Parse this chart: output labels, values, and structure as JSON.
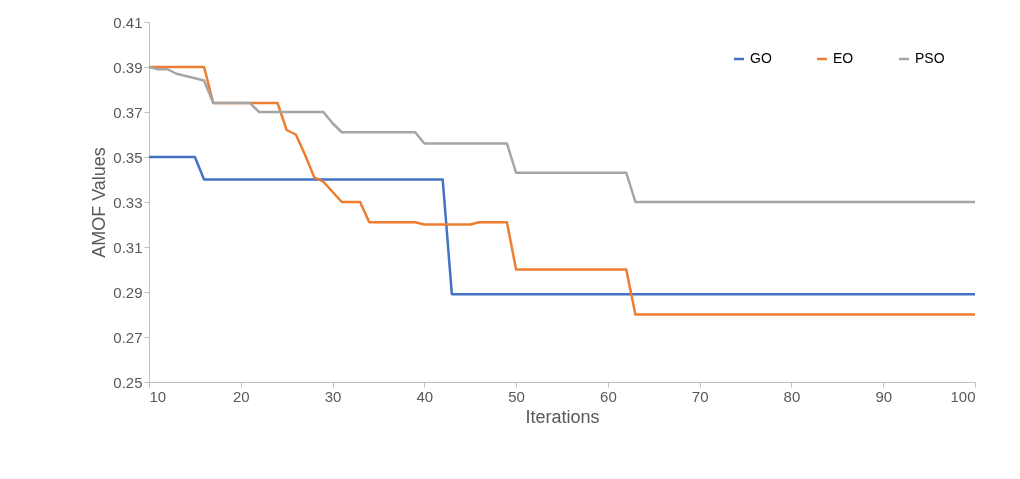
{
  "chart_data": {
    "type": "line",
    "xlabel": "Iterations",
    "ylabel": "AMOF Values",
    "xlim": [
      10,
      100
    ],
    "xticks": [
      10,
      20,
      30,
      40,
      50,
      60,
      70,
      80,
      90,
      100
    ],
    "ylim": [
      0.25,
      0.41
    ],
    "yticks": [
      0.25,
      0.27,
      0.29,
      0.31,
      0.33,
      0.35,
      0.37,
      0.39,
      0.41
    ],
    "grid": false,
    "legend": "top right",
    "marker": "none",
    "line_style": "solid",
    "series": [
      {
        "name": "GO",
        "color": "#4472c4",
        "x": [
          10,
          15,
          16,
          42,
          43,
          100
        ],
        "values": [
          0.35,
          0.35,
          0.34,
          0.34,
          0.289,
          0.289
        ]
      },
      {
        "name": "EO",
        "color": "#ed7d31",
        "x": [
          10,
          16,
          17,
          24,
          25,
          26,
          27,
          28,
          29,
          31,
          33,
          34,
          39,
          40,
          45,
          46,
          49,
          50,
          62,
          63,
          100
        ],
        "values": [
          0.39,
          0.39,
          0.374,
          0.374,
          0.362,
          0.36,
          0.351,
          0.341,
          0.339,
          0.33,
          0.33,
          0.321,
          0.321,
          0.32,
          0.32,
          0.321,
          0.321,
          0.3,
          0.3,
          0.28,
          0.28
        ]
      },
      {
        "name": "PSO",
        "color": "#a5a5a5",
        "x": [
          10,
          11,
          12,
          13,
          16,
          17,
          21,
          22,
          29,
          30,
          31,
          39,
          40,
          49,
          50,
          62,
          63,
          100
        ],
        "values": [
          0.39,
          0.389,
          0.389,
          0.387,
          0.384,
          0.374,
          0.374,
          0.37,
          0.37,
          0.365,
          0.361,
          0.361,
          0.356,
          0.356,
          0.343,
          0.343,
          0.33,
          0.33
        ]
      }
    ]
  }
}
